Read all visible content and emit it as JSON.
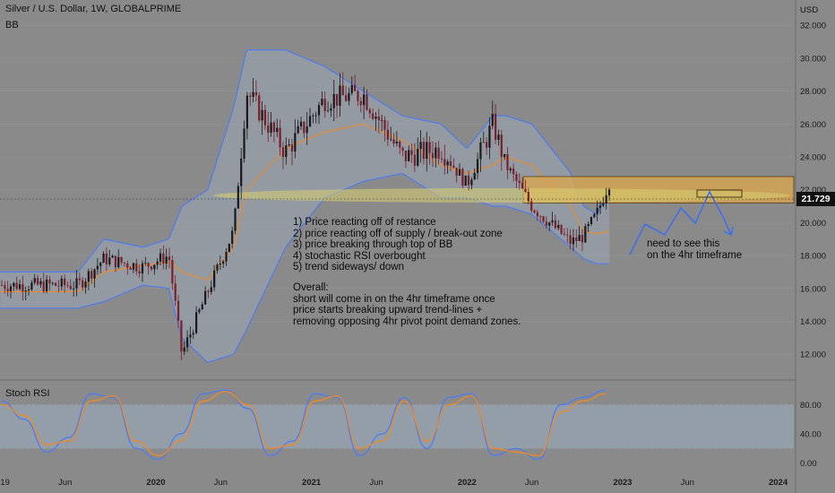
{
  "header": {
    "title": "Silver / U.S. Dollar, 1W, GLOBALPRIME",
    "indicator": "BB",
    "currency": "USD",
    "oscillator_label": "Stoch RSI"
  },
  "price_tag": "21.729",
  "notes": {
    "list": [
      "1) Price reacting off of restance",
      "2) price reacting off of supply / break-out zone",
      "3) price breaking through top of BB",
      "4) stochastic RSI overbought",
      "5) trend sideways/ down"
    ],
    "overall": [
      "Overall:",
      "short will come in on the 4hr timeframe once",
      "price starts breaking upward trend-lines +",
      "removing opposing 4hr pivot point demand zones."
    ],
    "side": [
      "need to see this",
      "on the 4hr timeframe"
    ]
  },
  "colors": {
    "background": "#8a8a8a",
    "candle": "#1a1a1a",
    "candle_down": "#7a1f2b",
    "bb_band": "#4d7cf0",
    "bb_fill": "#9aa8b6",
    "bb_basis": "#f08a24",
    "zone": "#e0a84a",
    "stoch_k": "#4d7cf0",
    "stoch_d": "#f08a24",
    "stoch_band": "#9aabbc",
    "ellipse": "#d8d070",
    "projection": "#3a6ef0"
  },
  "chart_data": [
    {
      "type": "candlestick",
      "title": "Silver / U.S. Dollar, 1W, GLOBALPRIME",
      "indicator": "BB",
      "y_ticks": [
        "32.000",
        "30.000",
        "28.000",
        "26.000",
        "24.000",
        "22.000",
        "20.000",
        "18.000",
        "16.000",
        "14.000",
        "12.000"
      ],
      "ylim": [
        10.5,
        33.5
      ],
      "x_ticks": [
        "19",
        "Jun",
        "2020",
        "Jun",
        "2021",
        "Jun",
        "2022",
        "Jun",
        "2023",
        "Jun",
        "2024"
      ],
      "last_price": 21.729,
      "close_path": {
        "x": [
          "2019-07",
          "2019-09",
          "2019-12",
          "2020-02",
          "2020-03",
          "2020-05",
          "2020-07",
          "2020-08",
          "2020-11",
          "2021-02",
          "2021-05",
          "2021-08",
          "2021-11",
          "2022-01",
          "2022-03",
          "2022-04",
          "2022-06",
          "2022-09",
          "2022-10",
          "2022-11",
          "2022-12"
        ],
        "y": [
          16.2,
          17.8,
          17.3,
          18.0,
          12.0,
          15.8,
          19.5,
          28.0,
          24.3,
          27.5,
          27.8,
          24.0,
          24.5,
          22.3,
          26.0,
          23.5,
          21.0,
          18.8,
          19.2,
          20.5,
          22.5
        ]
      },
      "bollinger": {
        "upper": [
          17.0,
          19.0,
          18.5,
          19.0,
          21.0,
          22.0,
          27.0,
          30.5,
          30.5,
          29.5,
          28.0,
          26.5,
          26.0,
          24.5,
          26.5,
          26.5,
          26.0,
          23.0,
          21.0,
          20.5,
          22.0
        ],
        "basis": [
          15.8,
          17.0,
          17.4,
          17.6,
          17.0,
          16.5,
          18.5,
          22.0,
          24.5,
          25.5,
          26.0,
          25.0,
          23.5,
          23.0,
          23.5,
          24.0,
          23.5,
          21.0,
          19.5,
          19.3,
          19.5
        ],
        "lower": [
          14.8,
          15.2,
          16.2,
          16.0,
          13.0,
          11.5,
          12.0,
          13.5,
          18.5,
          21.5,
          22.5,
          23.0,
          21.5,
          21.5,
          21.0,
          21.0,
          20.5,
          18.5,
          17.8,
          17.5,
          17.5
        ]
      },
      "supply_zone": [
        21.2,
        22.8
      ]
    },
    {
      "type": "line",
      "title": "Stoch RSI",
      "y_ticks": [
        "80.00",
        "40.00",
        "0.00"
      ],
      "ylim": [
        -5,
        105
      ],
      "band": [
        20,
        80
      ],
      "series": [
        {
          "values": [
            85,
            60,
            15,
            35,
            95,
            90,
            20,
            5,
            40,
            95,
            100,
            75,
            10,
            30,
            95,
            90,
            10,
            40,
            90,
            20,
            90,
            95,
            10,
            20,
            5,
            80,
            90,
            100
          ]
        },
        {
          "values": [
            80,
            65,
            25,
            30,
            85,
            92,
            30,
            10,
            30,
            85,
            98,
            80,
            20,
            25,
            85,
            92,
            20,
            30,
            85,
            30,
            80,
            92,
            20,
            15,
            10,
            70,
            85,
            95
          ]
        }
      ]
    }
  ]
}
